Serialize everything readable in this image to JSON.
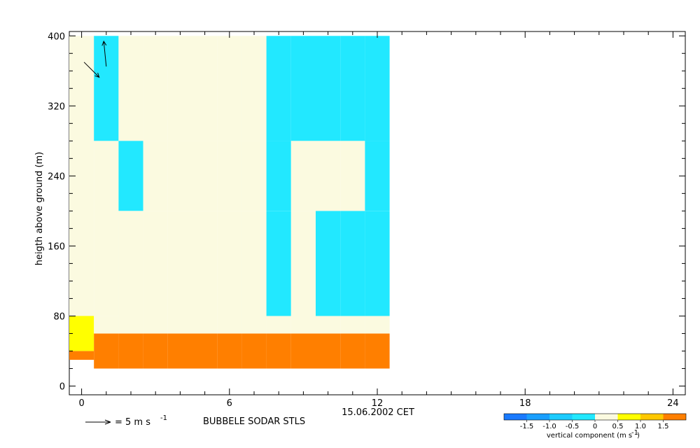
{
  "chart_data": {
    "type": "heatmap",
    "title": "",
    "xlabel": "15.06.2002 CET",
    "ylabel": "heigth above ground (m)",
    "xlim": [
      -0.5,
      24.5
    ],
    "ylim": [
      -10,
      405
    ],
    "x_ticks": [
      "0",
      "6",
      "12",
      "18",
      "24"
    ],
    "x_minor_ticks": [
      1,
      2,
      3,
      4,
      5,
      7,
      8,
      9,
      10,
      11,
      13,
      14,
      15,
      16,
      17,
      19,
      20,
      21,
      22,
      23
    ],
    "y_ticks": [
      "0",
      "80",
      "160",
      "240",
      "320",
      "400"
    ],
    "y_minor_ticks": [
      20,
      40,
      60,
      100,
      120,
      140,
      180,
      200,
      220,
      260,
      280,
      300,
      340,
      360,
      380
    ],
    "grid": false,
    "station_label": "BUBBELE SODAR STLS",
    "arrow_legend": {
      "text": "= 5 m s",
      "exponent": "-1"
    },
    "colorbar": {
      "title": "vertical component (m s",
      "title_exponent": "-1",
      "title_close": ")",
      "tick_labels": [
        "-1.5",
        "-1.0",
        "-0.5",
        "0",
        "0.5",
        "1.0",
        "1.5"
      ],
      "bins": [
        {
          "range": [
            -2.0,
            -1.5
          ],
          "color": "#1a7aff"
        },
        {
          "range": [
            -1.5,
            -1.0
          ],
          "color": "#199fff"
        },
        {
          "range": [
            -1.0,
            -0.5
          ],
          "color": "#1ccbff"
        },
        {
          "range": [
            -0.5,
            0.0
          ],
          "color": "#22e8ff"
        },
        {
          "range": [
            0.0,
            0.5
          ],
          "color": "#fbfae0"
        },
        {
          "range": [
            0.5,
            1.0
          ],
          "color": "#ffff00"
        },
        {
          "range": [
            1.0,
            1.5
          ],
          "color": "#ffc800"
        },
        {
          "range": [
            1.5,
            2.0
          ],
          "color": "#ff7f00"
        }
      ]
    },
    "cells": [
      {
        "x": 0,
        "y1": 80,
        "y2": 400,
        "v": 0.25
      },
      {
        "x": 0,
        "y1": 40,
        "y2": 80,
        "v": 0.75
      },
      {
        "x": 0,
        "y1": 30,
        "y2": 40,
        "v": 1.75
      },
      {
        "x": 1,
        "y1": 280,
        "y2": 400,
        "v": -0.25
      },
      {
        "x": 1,
        "y1": 80,
        "y2": 280,
        "v": 0.25
      },
      {
        "x": 1,
        "y1": 60,
        "y2": 80,
        "v": 0.25
      },
      {
        "x": 1,
        "y1": 20,
        "y2": 60,
        "v": 1.75
      },
      {
        "x": 2,
        "y1": 280,
        "y2": 400,
        "v": 0.25
      },
      {
        "x": 2,
        "y1": 200,
        "y2": 280,
        "v": -0.25
      },
      {
        "x": 2,
        "y1": 80,
        "y2": 200,
        "v": 0.25
      },
      {
        "x": 2,
        "y1": 60,
        "y2": 80,
        "v": 0.25
      },
      {
        "x": 2,
        "y1": 20,
        "y2": 60,
        "v": 1.75
      },
      {
        "x": 3,
        "y1": 280,
        "y2": 400,
        "v": 0.25
      },
      {
        "x": 3,
        "y1": 200,
        "y2": 280,
        "v": 0.25
      },
      {
        "x": 3,
        "y1": 80,
        "y2": 200,
        "v": 0.25
      },
      {
        "x": 3,
        "y1": 60,
        "y2": 80,
        "v": 0.25
      },
      {
        "x": 3,
        "y1": 20,
        "y2": 60,
        "v": 1.75
      },
      {
        "x": 4,
        "y1": 280,
        "y2": 400,
        "v": 0.25
      },
      {
        "x": 4,
        "y1": 200,
        "y2": 280,
        "v": 0.25
      },
      {
        "x": 4,
        "y1": 80,
        "y2": 200,
        "v": 0.25
      },
      {
        "x": 4,
        "y1": 60,
        "y2": 80,
        "v": 0.25
      },
      {
        "x": 4,
        "y1": 20,
        "y2": 60,
        "v": 1.75
      },
      {
        "x": 5,
        "y1": 280,
        "y2": 400,
        "v": 0.25
      },
      {
        "x": 5,
        "y1": 200,
        "y2": 280,
        "v": 0.25
      },
      {
        "x": 5,
        "y1": 80,
        "y2": 200,
        "v": 0.25
      },
      {
        "x": 5,
        "y1": 60,
        "y2": 80,
        "v": 0.25
      },
      {
        "x": 5,
        "y1": 20,
        "y2": 60,
        "v": 1.75
      },
      {
        "x": 6,
        "y1": 280,
        "y2": 400,
        "v": 0.25
      },
      {
        "x": 6,
        "y1": 200,
        "y2": 280,
        "v": 0.25
      },
      {
        "x": 6,
        "y1": 80,
        "y2": 200,
        "v": 0.25
      },
      {
        "x": 6,
        "y1": 60,
        "y2": 80,
        "v": 0.25
      },
      {
        "x": 6,
        "y1": 20,
        "y2": 60,
        "v": 1.75
      },
      {
        "x": 7,
        "y1": 280,
        "y2": 400,
        "v": 0.25
      },
      {
        "x": 7,
        "y1": 200,
        "y2": 280,
        "v": 0.25
      },
      {
        "x": 7,
        "y1": 80,
        "y2": 200,
        "v": 0.25
      },
      {
        "x": 7,
        "y1": 60,
        "y2": 80,
        "v": 0.25
      },
      {
        "x": 7,
        "y1": 20,
        "y2": 60,
        "v": 1.75
      },
      {
        "x": 8,
        "y1": 280,
        "y2": 400,
        "v": -0.25
      },
      {
        "x": 8,
        "y1": 200,
        "y2": 280,
        "v": -0.25
      },
      {
        "x": 8,
        "y1": 80,
        "y2": 200,
        "v": -0.25
      },
      {
        "x": 8,
        "y1": 60,
        "y2": 80,
        "v": 0.25
      },
      {
        "x": 8,
        "y1": 20,
        "y2": 60,
        "v": 1.75
      },
      {
        "x": 9,
        "y1": 280,
        "y2": 400,
        "v": -0.25
      },
      {
        "x": 9,
        "y1": 200,
        "y2": 280,
        "v": 0.25
      },
      {
        "x": 9,
        "y1": 80,
        "y2": 200,
        "v": 0.25
      },
      {
        "x": 9,
        "y1": 60,
        "y2": 80,
        "v": 0.25
      },
      {
        "x": 9,
        "y1": 20,
        "y2": 60,
        "v": 1.75
      },
      {
        "x": 10,
        "y1": 280,
        "y2": 400,
        "v": -0.25
      },
      {
        "x": 10,
        "y1": 200,
        "y2": 280,
        "v": 0.25
      },
      {
        "x": 10,
        "y1": 80,
        "y2": 200,
        "v": -0.25
      },
      {
        "x": 10,
        "y1": 60,
        "y2": 80,
        "v": 0.25
      },
      {
        "x": 10,
        "y1": 20,
        "y2": 60,
        "v": 1.75
      },
      {
        "x": 11,
        "y1": 280,
        "y2": 400,
        "v": -0.25
      },
      {
        "x": 11,
        "y1": 200,
        "y2": 280,
        "v": 0.25
      },
      {
        "x": 11,
        "y1": 80,
        "y2": 200,
        "v": -0.25
      },
      {
        "x": 11,
        "y1": 60,
        "y2": 80,
        "v": 0.25
      },
      {
        "x": 11,
        "y1": 20,
        "y2": 60,
        "v": 1.75
      },
      {
        "x": 12,
        "y1": 280,
        "y2": 400,
        "v": -0.25
      },
      {
        "x": 12,
        "y1": 200,
        "y2": 280,
        "v": -0.25
      },
      {
        "x": 12,
        "y1": 80,
        "y2": 200,
        "v": -0.25
      },
      {
        "x": 12,
        "y1": 60,
        "y2": 80,
        "v": 0.25
      },
      {
        "x": 12,
        "y1": 20,
        "y2": 60,
        "v": 1.75
      }
    ],
    "arrows": [
      {
        "t": 0.1,
        "z": 370,
        "u": 3.0,
        "v": -3.0
      },
      {
        "t": 1.0,
        "z": 365,
        "u": -0.5,
        "v": 5.0
      }
    ]
  }
}
